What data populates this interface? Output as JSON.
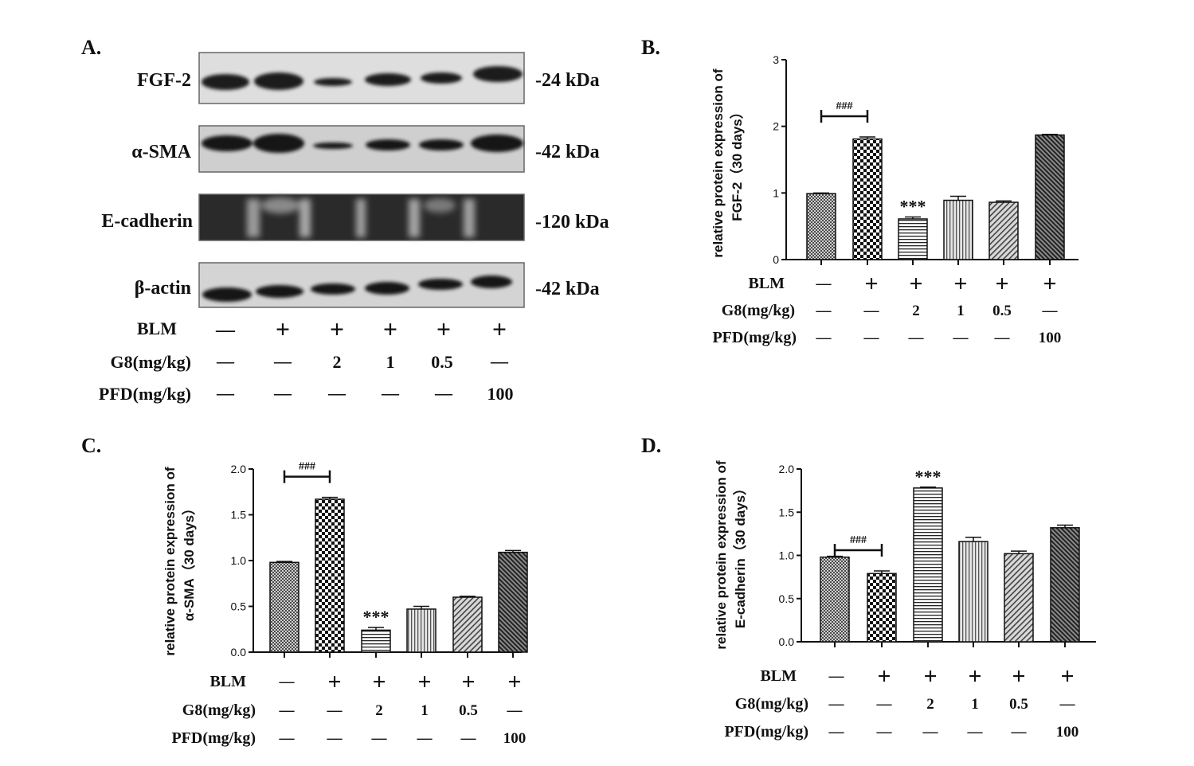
{
  "panel_a": {
    "letter": "A.",
    "blots": [
      {
        "protein": "FGF-2",
        "size": "-24 kDa"
      },
      {
        "protein": "α-SMA",
        "size": "-42 kDa"
      },
      {
        "protein": "E-cadherin",
        "size": "-120 kDa"
      },
      {
        "protein": "β-actin",
        "size": "-42 kDa"
      }
    ]
  },
  "conditions": {
    "rows": [
      "BLM",
      "G8(mg/kg)",
      "PFD(mg/kg)"
    ],
    "blm": [
      "—",
      "+",
      "+",
      "+",
      "+",
      "+"
    ],
    "g8": [
      "—",
      "—",
      "2",
      "1",
      "0.5",
      "—"
    ],
    "pfd": [
      "—",
      "—",
      "—",
      "—",
      "—",
      "100"
    ]
  },
  "chart_data": [
    {
      "type": "bar",
      "panel": "B.",
      "ylabel": [
        "relative protein expression of",
        "FGF-2（30 days）"
      ],
      "ylim": [
        0,
        3
      ],
      "yticks": [
        "0",
        "1",
        "2",
        "3"
      ],
      "categories": [
        "—/—/—",
        "+/—/—",
        "+/2/—",
        "+/1/—",
        "+/0.5/—",
        "+/—/100"
      ],
      "values": [
        0.99,
        1.81,
        0.61,
        0.89,
        0.86,
        1.87
      ],
      "errors": [
        0.01,
        0.03,
        0.03,
        0.06,
        0.02,
        0.01
      ],
      "annotations": [
        {
          "text": "###",
          "between": [
            0,
            1
          ]
        },
        {
          "text": "***",
          "bar": 2
        }
      ]
    },
    {
      "type": "bar",
      "panel": "C.",
      "ylabel": [
        "relative protein expression of",
        "α-SMA（30 days）"
      ],
      "ylim": [
        0,
        2
      ],
      "yticks": [
        "0.0",
        "0.5",
        "1.0",
        "1.5",
        "2.0"
      ],
      "categories": [
        "—/—/—",
        "+/—/—",
        "+/2/—",
        "+/1/—",
        "+/0.5/—",
        "+/—/100"
      ],
      "values": [
        0.98,
        1.67,
        0.24,
        0.47,
        0.6,
        1.09
      ],
      "errors": [
        0.01,
        0.02,
        0.03,
        0.03,
        0.01,
        0.02
      ],
      "annotations": [
        {
          "text": "###",
          "between": [
            0,
            1
          ]
        },
        {
          "text": "***",
          "bar": 2
        }
      ]
    },
    {
      "type": "bar",
      "panel": "D.",
      "ylabel": [
        "relative protein expression of",
        "E-cadherin（30 days）"
      ],
      "ylim": [
        0,
        2
      ],
      "yticks": [
        "0.0",
        "0.5",
        "1.0",
        "1.5",
        "2.0"
      ],
      "categories": [
        "—/—/—",
        "+/—/—",
        "+/2/—",
        "+/1/—",
        "+/0.5/—",
        "+/—/100"
      ],
      "values": [
        0.98,
        0.79,
        1.78,
        1.16,
        1.02,
        1.32
      ],
      "errors": [
        0.01,
        0.03,
        0.01,
        0.05,
        0.03,
        0.03
      ],
      "annotations": [
        {
          "text": "###",
          "between": [
            0,
            1
          ]
        },
        {
          "text": "***",
          "bar": 2
        }
      ]
    }
  ]
}
